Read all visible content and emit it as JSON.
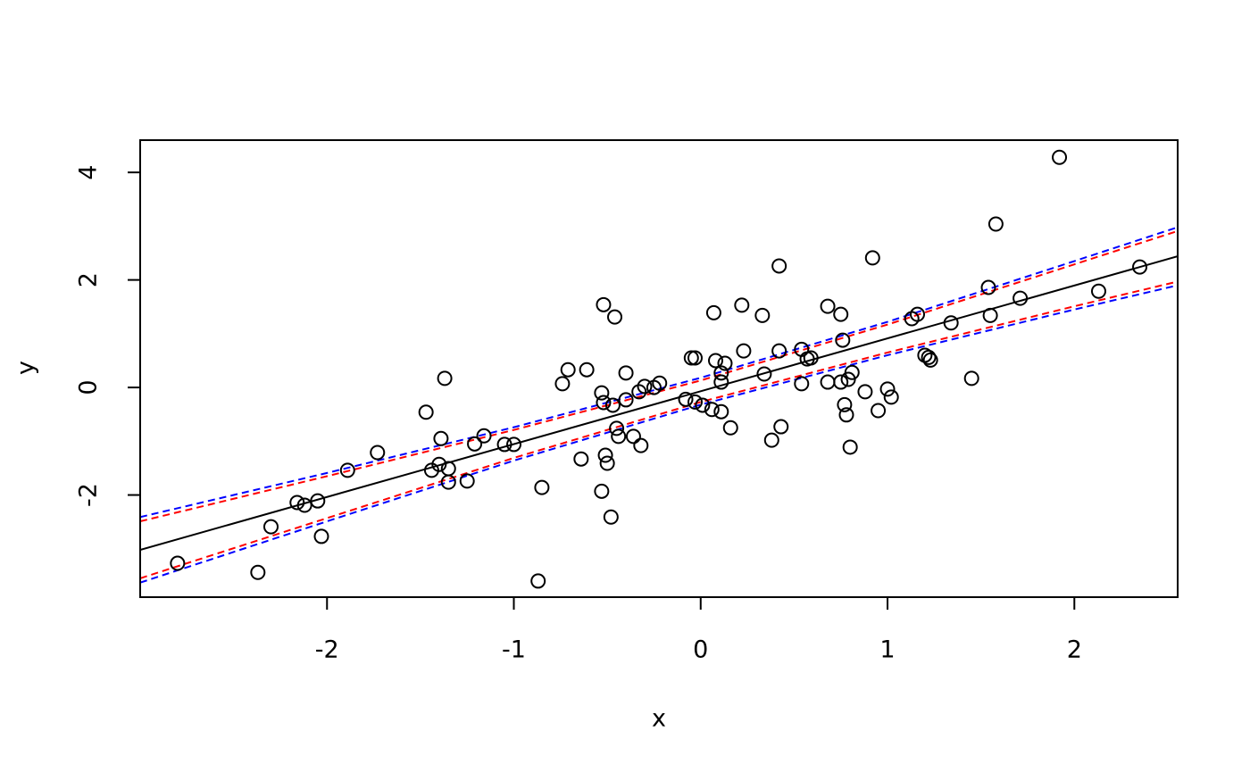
{
  "chart_data": {
    "type": "scatter",
    "xlabel": "x",
    "ylabel": "y",
    "xlim": [
      -3.0,
      2.553
    ],
    "ylim": [
      -3.9,
      4.6
    ],
    "xticks": [
      -2,
      -1,
      0,
      1,
      2
    ],
    "yticks": [
      -2,
      0,
      2,
      4
    ],
    "color": "#000000",
    "x": [
      -2.8,
      -2.37,
      -2.3,
      -2.16,
      -2.12,
      -2.05,
      -2.03,
      -1.89,
      -1.73,
      -1.47,
      -1.44,
      -1.4,
      -1.39,
      -1.37,
      -1.35,
      -1.35,
      -1.25,
      -1.21,
      -1.16,
      -1.05,
      -1.0,
      -0.87,
      -0.85,
      -0.74,
      -0.71,
      -0.64,
      -0.61,
      -0.53,
      -0.53,
      -0.52,
      -0.52,
      -0.51,
      -0.5,
      -0.48,
      -0.47,
      -0.46,
      -0.45,
      -0.44,
      -0.4,
      -0.4,
      -0.36,
      -0.33,
      -0.32,
      -0.3,
      -0.25,
      -0.22,
      -0.08,
      -0.05,
      -0.03,
      -0.03,
      0.01,
      0.06,
      0.07,
      0.08,
      0.11,
      0.11,
      0.11,
      0.13,
      0.16,
      0.22,
      0.23,
      0.33,
      0.34,
      0.38,
      0.42,
      0.42,
      0.43,
      0.54,
      0.54,
      0.57,
      0.59,
      0.68,
      0.68,
      0.75,
      0.75,
      0.76,
      0.77,
      0.78,
      0.79,
      0.81,
      0.8,
      0.88,
      0.92,
      0.95,
      1.0,
      1.02,
      1.13,
      1.16,
      1.2,
      1.22,
      1.23,
      1.34,
      1.45,
      1.54,
      1.55,
      1.58,
      1.71,
      1.92,
      2.13,
      2.35
    ],
    "values": [
      -3.27,
      -3.44,
      -2.59,
      -2.14,
      -2.19,
      -2.11,
      -2.77,
      -1.54,
      -1.21,
      -0.46,
      -1.54,
      -1.43,
      -0.95,
      0.17,
      -1.51,
      -1.76,
      -1.74,
      -1.05,
      -0.9,
      -1.06,
      -1.06,
      -3.6,
      -1.86,
      0.07,
      0.33,
      -1.33,
      0.33,
      -1.93,
      -0.1,
      1.54,
      -0.28,
      -1.26,
      -1.41,
      -2.41,
      -0.33,
      1.31,
      -0.76,
      -0.91,
      0.27,
      -0.23,
      -0.91,
      -0.08,
      -1.08,
      0.02,
      0.0,
      0.08,
      -0.22,
      0.55,
      -0.27,
      0.55,
      -0.33,
      -0.41,
      1.39,
      0.5,
      -0.45,
      0.1,
      0.27,
      0.45,
      -0.75,
      1.53,
      0.68,
      1.34,
      0.25,
      -0.98,
      2.26,
      0.68,
      -0.73,
      0.71,
      0.07,
      0.53,
      0.55,
      0.1,
      1.51,
      0.1,
      1.36,
      0.88,
      -0.32,
      -0.51,
      0.15,
      0.28,
      -1.11,
      -0.08,
      2.41,
      -0.43,
      -0.03,
      -0.18,
      1.28,
      1.36,
      0.6,
      0.56,
      0.51,
      1.2,
      0.17,
      1.86,
      1.34,
      3.04,
      1.66,
      4.28,
      1.79,
      2.24
    ],
    "lines": [
      {
        "color": "#000000",
        "dashed": false,
        "x": [
          -3.0,
          2.553
        ],
        "values": [
          -3.02,
          2.44
        ]
      },
      {
        "color": "#ff0000",
        "dashed": true,
        "x": [
          -3,
          -2,
          -1,
          0,
          1,
          2,
          2.553
        ],
        "values": [
          -2.49,
          -1.65,
          -0.79,
          0.13,
          1.17,
          2.29,
          2.91
        ]
      },
      {
        "color": "#ff0000",
        "dashed": true,
        "x": [
          -3,
          -2,
          -1,
          0,
          1,
          2,
          2.553
        ],
        "values": [
          -3.55,
          -2.43,
          -1.31,
          -0.27,
          0.65,
          1.51,
          1.97
        ]
      },
      {
        "color": "#0000ff",
        "dashed": true,
        "x": [
          -3,
          -2,
          -1,
          0,
          1,
          2,
          2.553
        ],
        "values": [
          -2.41,
          -1.59,
          -0.74,
          0.18,
          1.22,
          2.35,
          2.98
        ]
      },
      {
        "color": "#0000ff",
        "dashed": true,
        "x": [
          -3,
          -2,
          -1,
          0,
          1,
          2,
          2.553
        ],
        "values": [
          -3.63,
          -2.49,
          -1.36,
          -0.32,
          0.6,
          1.45,
          1.9
        ]
      }
    ]
  }
}
